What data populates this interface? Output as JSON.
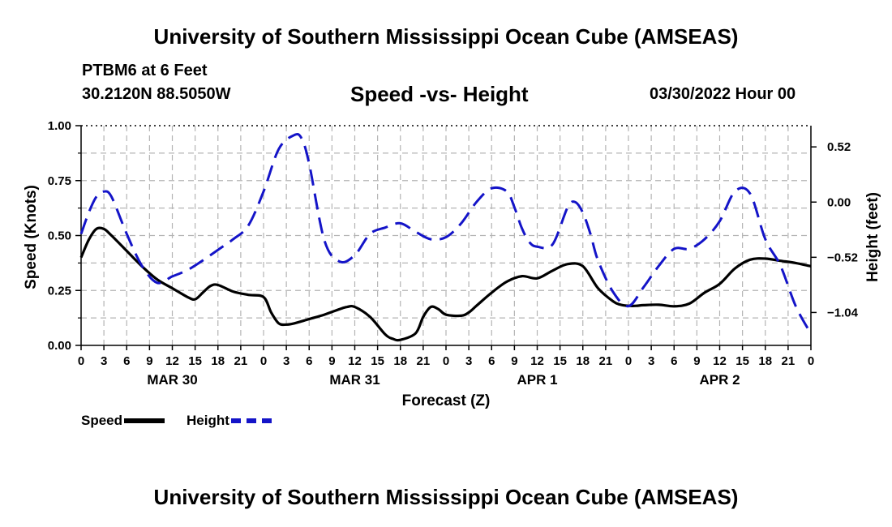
{
  "header": {
    "main_title": "University of Southern Mississippi Ocean Cube (AMSEAS)",
    "station": "PTBM6 at 6 Feet",
    "coords": "30.2120N  88.5050W",
    "date": "03/30/2022 Hour 00"
  },
  "footer": {
    "title": "University of Southern Mississippi Ocean Cube (AMSEAS)"
  },
  "colors": {
    "speed": "#000000",
    "height": "#1414c8",
    "grid": "#b4b4b4"
  },
  "chart_data": {
    "type": "line",
    "title": "Speed -vs- Height",
    "xlabel": "Forecast (Z)",
    "ylabel": "Speed (Knots)",
    "y2label": "Height (feet)",
    "xlim": [
      0,
      96
    ],
    "ylim": [
      0,
      1.0
    ],
    "y2lim": [
      -1.35,
      0.72
    ],
    "y_ticks": [
      0,
      0.25,
      0.5,
      0.75,
      1.0
    ],
    "y_tick_labels": [
      "0.00",
      "0.25",
      "0.50",
      "0.75",
      "1.00"
    ],
    "y2_ticks": [
      -1.04,
      -0.52,
      0.0,
      0.52
    ],
    "y2_tick_labels": [
      "−1.04",
      "−0.52",
      "0.00",
      "0.52"
    ],
    "x_ticks": [
      0,
      3,
      6,
      9,
      12,
      15,
      18,
      21,
      24,
      27,
      30,
      33,
      36,
      39,
      42,
      45,
      48,
      51,
      54,
      57,
      60,
      63,
      66,
      69,
      72,
      75,
      78,
      81,
      84,
      87,
      90,
      93,
      96
    ],
    "x_tick_labels": [
      "0",
      "3",
      "6",
      "9",
      "12",
      "15",
      "18",
      "21",
      "0",
      "3",
      "6",
      "9",
      "12",
      "15",
      "18",
      "21",
      "0",
      "3",
      "6",
      "9",
      "12",
      "15",
      "18",
      "21",
      "0",
      "3",
      "6",
      "9",
      "12",
      "15",
      "18",
      "21",
      "0"
    ],
    "date_labels": [
      {
        "x": 12,
        "label": "MAR 30"
      },
      {
        "x": 36,
        "label": "MAR 31"
      },
      {
        "x": 60,
        "label": "APR 1"
      },
      {
        "x": 84,
        "label": "APR 2"
      }
    ],
    "legend": [
      "Speed",
      "Height"
    ],
    "series": [
      {
        "name": "Speed",
        "axis": "left",
        "style": "solid",
        "x": [
          0,
          1,
          2,
          3,
          4,
          6,
          8,
          10,
          12,
          14,
          15,
          16,
          17,
          18,
          20,
          22,
          24,
          25,
          26,
          27,
          28,
          30,
          32,
          34,
          35,
          36,
          38,
          40,
          41,
          42,
          44,
          45,
          46,
          47,
          48,
          50,
          51,
          52,
          54,
          56,
          58,
          60,
          62,
          64,
          66,
          68,
          70,
          71,
          72,
          73,
          74,
          76,
          78,
          80,
          82,
          84,
          86,
          88,
          90,
          92,
          94,
          96
        ],
        "values": [
          0.4,
          0.48,
          0.53,
          0.53,
          0.5,
          0.43,
          0.36,
          0.3,
          0.26,
          0.22,
          0.21,
          0.24,
          0.27,
          0.275,
          0.245,
          0.23,
          0.22,
          0.15,
          0.1,
          0.095,
          0.1,
          0.12,
          0.14,
          0.165,
          0.175,
          0.175,
          0.13,
          0.05,
          0.03,
          0.025,
          0.055,
          0.13,
          0.175,
          0.165,
          0.14,
          0.135,
          0.15,
          0.18,
          0.24,
          0.29,
          0.315,
          0.305,
          0.34,
          0.37,
          0.36,
          0.26,
          0.2,
          0.185,
          0.18,
          0.18,
          0.183,
          0.185,
          0.178,
          0.19,
          0.24,
          0.28,
          0.35,
          0.39,
          0.395,
          0.385,
          0.375,
          0.36
        ]
      },
      {
        "name": "Height",
        "axis": "right",
        "style": "dashed",
        "x": [
          0,
          1,
          2,
          3,
          4,
          6,
          8,
          10,
          12,
          14,
          16,
          18,
          20,
          22,
          24,
          26,
          28,
          29,
          30,
          32,
          34,
          36,
          38,
          40,
          42,
          44,
          46,
          48,
          50,
          52,
          54,
          56,
          57,
          58,
          59,
          60,
          62,
          64,
          65,
          66,
          67,
          68,
          70,
          72,
          74,
          76,
          78,
          80,
          82,
          84,
          86,
          88,
          90,
          92,
          94,
          96
        ],
        "values": [
          -0.3,
          -0.1,
          0.05,
          0.1,
          0.05,
          -0.3,
          -0.6,
          -0.76,
          -0.7,
          -0.64,
          -0.55,
          -0.45,
          -0.35,
          -0.22,
          0.1,
          0.5,
          0.63,
          0.6,
          0.36,
          -0.36,
          -0.56,
          -0.5,
          -0.3,
          -0.24,
          -0.2,
          -0.28,
          -0.35,
          -0.33,
          -0.2,
          0.0,
          0.13,
          0.1,
          -0.05,
          -0.25,
          -0.38,
          -0.42,
          -0.4,
          -0.05,
          0.0,
          -0.1,
          -0.3,
          -0.55,
          -0.85,
          -0.98,
          -0.8,
          -0.6,
          -0.44,
          -0.44,
          -0.35,
          -0.18,
          0.1,
          0.08,
          -0.35,
          -0.6,
          -0.98,
          -1.24
        ]
      }
    ]
  }
}
